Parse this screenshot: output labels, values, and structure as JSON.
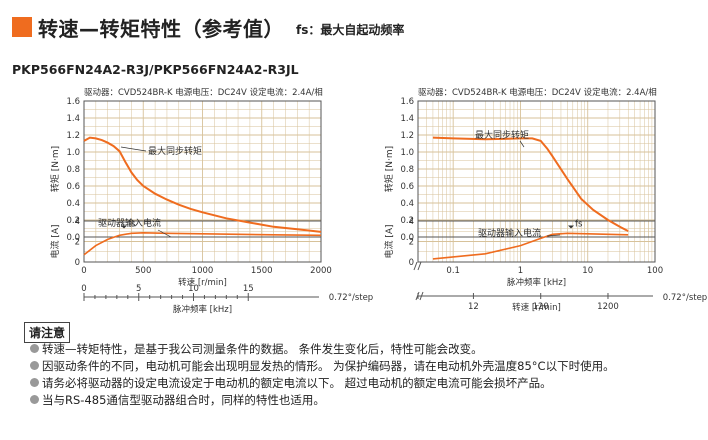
{
  "header": {
    "title": "转速—转矩特性（参考值）",
    "subtitle": "fs：最大自起动频率"
  },
  "model": "PKP566FN24A2-R3J/PKP566FN24A2-R3JL",
  "chart_data": [
    {
      "type": "line",
      "condition": "驱动器：CVD524BR-K  电源电压：DC24V  设定电流：2.4A/相",
      "xlabel": "转速 [r/min]",
      "x_ticks": [
        0,
        500,
        1000,
        1500,
        2000
      ],
      "xlim": [
        0,
        2000
      ],
      "ylabel_torque": "转矩 [N·m]",
      "y_ticks_torque": [
        0,
        0.2,
        0.4,
        0.6,
        0.8,
        1.0,
        1.2,
        1.4,
        1.6
      ],
      "ylim_torque": [
        0,
        1.6
      ],
      "ylabel_current": "电流 [A]",
      "y_ticks_current": [
        0,
        2,
        4
      ],
      "ylim_current": [
        0,
        4
      ],
      "x2label": "脉冲频率 [kHz]",
      "x2_ticks": [
        "0",
        "5",
        "10",
        "15"
      ],
      "x2_end_label": "0.72°/step",
      "grid": true,
      "series": [
        {
          "name": "最大同步转矩",
          "color": "#ef6c1f",
          "x": [
            0,
            50,
            100,
            150,
            200,
            250,
            300,
            350,
            400,
            450,
            500,
            600,
            700,
            800,
            900,
            1000,
            1200,
            1400,
            1600,
            1800,
            2000
          ],
          "y": [
            1.13,
            1.17,
            1.16,
            1.14,
            1.11,
            1.07,
            1.01,
            0.88,
            0.76,
            0.67,
            0.6,
            0.51,
            0.44,
            0.38,
            0.33,
            0.29,
            0.22,
            0.17,
            0.12,
            0.09,
            0.06
          ]
        },
        {
          "name": "驱动器输入电流",
          "color": "#ef6c1f",
          "x": [
            0,
            100,
            200,
            300,
            400,
            500,
            700,
            1000,
            1300,
            1600,
            2000
          ],
          "y": [
            0.7,
            1.6,
            2.2,
            2.6,
            2.8,
            2.85,
            2.8,
            2.75,
            2.7,
            2.65,
            2.6
          ]
        }
      ],
      "fs_label": "fs",
      "fs_torque": 0.1
    },
    {
      "type": "line",
      "condition": "驱动器：CVD524BR-K  电源电压：DC24V  设定电流：2.4A/相",
      "xlabel": "脉冲频率 [kHz]",
      "x_scale": "log",
      "x_ticks": [
        "0.1",
        "1",
        "10",
        "100"
      ],
      "xlim": [
        0.03,
        100
      ],
      "ylabel_torque": "转矩 [N·m]",
      "y_ticks_torque": [
        0,
        0.2,
        0.4,
        0.6,
        0.8,
        1.0,
        1.2,
        1.4,
        1.6
      ],
      "ylim_torque": [
        0,
        1.6
      ],
      "ylabel_current": "电流 [A]",
      "y_ticks_current": [
        0,
        2,
        4
      ],
      "ylim_current": [
        0,
        4
      ],
      "x2label": "转速 [r/min]",
      "x2_ticks": [
        "10",
        "12",
        "120",
        "1200"
      ],
      "x2_end_label": "0.72°/step",
      "grid": true,
      "series": [
        {
          "name": "最大同步转矩",
          "color": "#ef6c1f",
          "x": [
            0.05,
            0.1,
            0.3,
            1,
            1.5,
            2,
            2.5,
            3,
            5,
            8,
            12,
            20,
            30,
            40
          ],
          "y": [
            1.17,
            1.16,
            1.15,
            1.16,
            1.16,
            1.13,
            1.04,
            0.95,
            0.68,
            0.45,
            0.32,
            0.2,
            0.12,
            0.07
          ]
        },
        {
          "name": "驱动器输入电流",
          "color": "#ef6c1f",
          "x": [
            0.05,
            0.1,
            0.3,
            1,
            2,
            3,
            5,
            10,
            20,
            40
          ],
          "y": [
            0.3,
            0.5,
            0.8,
            1.6,
            2.3,
            2.7,
            2.8,
            2.75,
            2.7,
            2.65
          ]
        }
      ],
      "fs_label": "fs",
      "fs_torque": 0.1
    }
  ],
  "notes": {
    "heading": "请注意",
    "items": [
      "转速—转矩特性，是基于我公司测量条件的数据。 条件发生变化后，特性可能会改变。",
      "因驱动条件的不同，电动机可能会出现明显发热的情形。 为保护编码器，请在电动机外壳温度85°C以下时使用。",
      "请务必将驱动器的设定电流设定于电动机的额定电流以下。 超过电动机的额定电流可能会损坏产品。",
      "当与RS-485通信型驱动器组合时，同样的特性也适用。"
    ]
  }
}
